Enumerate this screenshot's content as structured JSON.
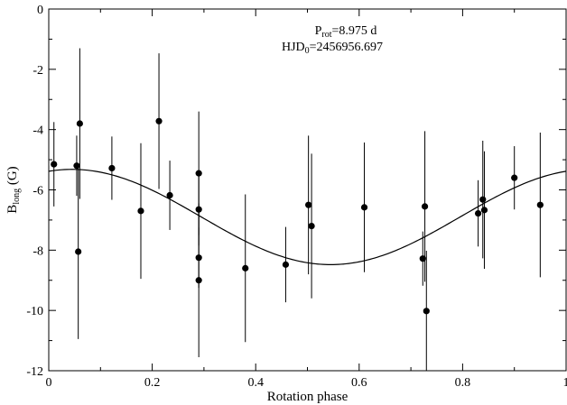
{
  "chart_data": {
    "type": "scatter",
    "xlabel": "Rotation phase",
    "ylabel": {
      "main": "B",
      "sub": "long",
      "unit": " (G)"
    },
    "annotations": [
      {
        "main": "P",
        "sub": "rot",
        "rest": "=8.975 d"
      },
      {
        "main": "HJD",
        "sub": "0",
        "rest": "=2456956.697"
      }
    ],
    "xlim": [
      0,
      1
    ],
    "ylim": [
      -12,
      0
    ],
    "x_ticks": [
      "0",
      "0.2",
      "0.4",
      "0.6",
      "0.8",
      "1"
    ],
    "y_ticks": [
      "0",
      "-2",
      "-4",
      "-6",
      "-8",
      "-10",
      "-12"
    ],
    "grid": false,
    "series": [
      {
        "style": "points-with-errorbars",
        "points": [
          {
            "x": 0.01,
            "y": -5.15,
            "err": 1.4
          },
          {
            "x": 0.054,
            "y": -5.2,
            "err": 1.0
          },
          {
            "x": 0.057,
            "y": -8.05,
            "err": 2.9
          },
          {
            "x": 0.06,
            "y": -3.8,
            "err": 2.5
          },
          {
            "x": 0.122,
            "y": -5.28,
            "err": 1.05
          },
          {
            "x": 0.178,
            "y": -6.7,
            "err": 2.25
          },
          {
            "x": 0.213,
            "y": -3.72,
            "err": 2.25
          },
          {
            "x": 0.234,
            "y": -6.18,
            "err": 1.15
          },
          {
            "x": 0.29,
            "y": -5.45,
            "err": 2.05
          },
          {
            "x": 0.29,
            "y": -6.65,
            "err": 1.2
          },
          {
            "x": 0.29,
            "y": -8.25,
            "err": 1.0
          },
          {
            "x": 0.29,
            "y": -9.0,
            "err": 2.55
          },
          {
            "x": 0.38,
            "y": -8.6,
            "err": 2.45
          },
          {
            "x": 0.458,
            "y": -8.48,
            "err": 1.25
          },
          {
            "x": 0.502,
            "y": -6.5,
            "err": 2.3
          },
          {
            "x": 0.508,
            "y": -7.2,
            "err": 2.4
          },
          {
            "x": 0.61,
            "y": -6.58,
            "err": 2.15
          },
          {
            "x": 0.723,
            "y": -8.28,
            "err": 0.9
          },
          {
            "x": 0.727,
            "y": -6.55,
            "err": 2.5
          },
          {
            "x": 0.73,
            "y": -10.02,
            "err": 2.0
          },
          {
            "x": 0.83,
            "y": -6.78,
            "err": 1.1
          },
          {
            "x": 0.839,
            "y": -6.32,
            "err": 1.95
          },
          {
            "x": 0.842,
            "y": -6.67,
            "err": 1.95
          },
          {
            "x": 0.9,
            "y": -5.6,
            "err": 1.05
          },
          {
            "x": 0.95,
            "y": -6.5,
            "err": 2.4
          }
        ]
      },
      {
        "style": "line",
        "model": "sinusoid",
        "mean": -6.9,
        "amplitude": 1.58,
        "phase_of_minimum": 0.545
      }
    ]
  }
}
